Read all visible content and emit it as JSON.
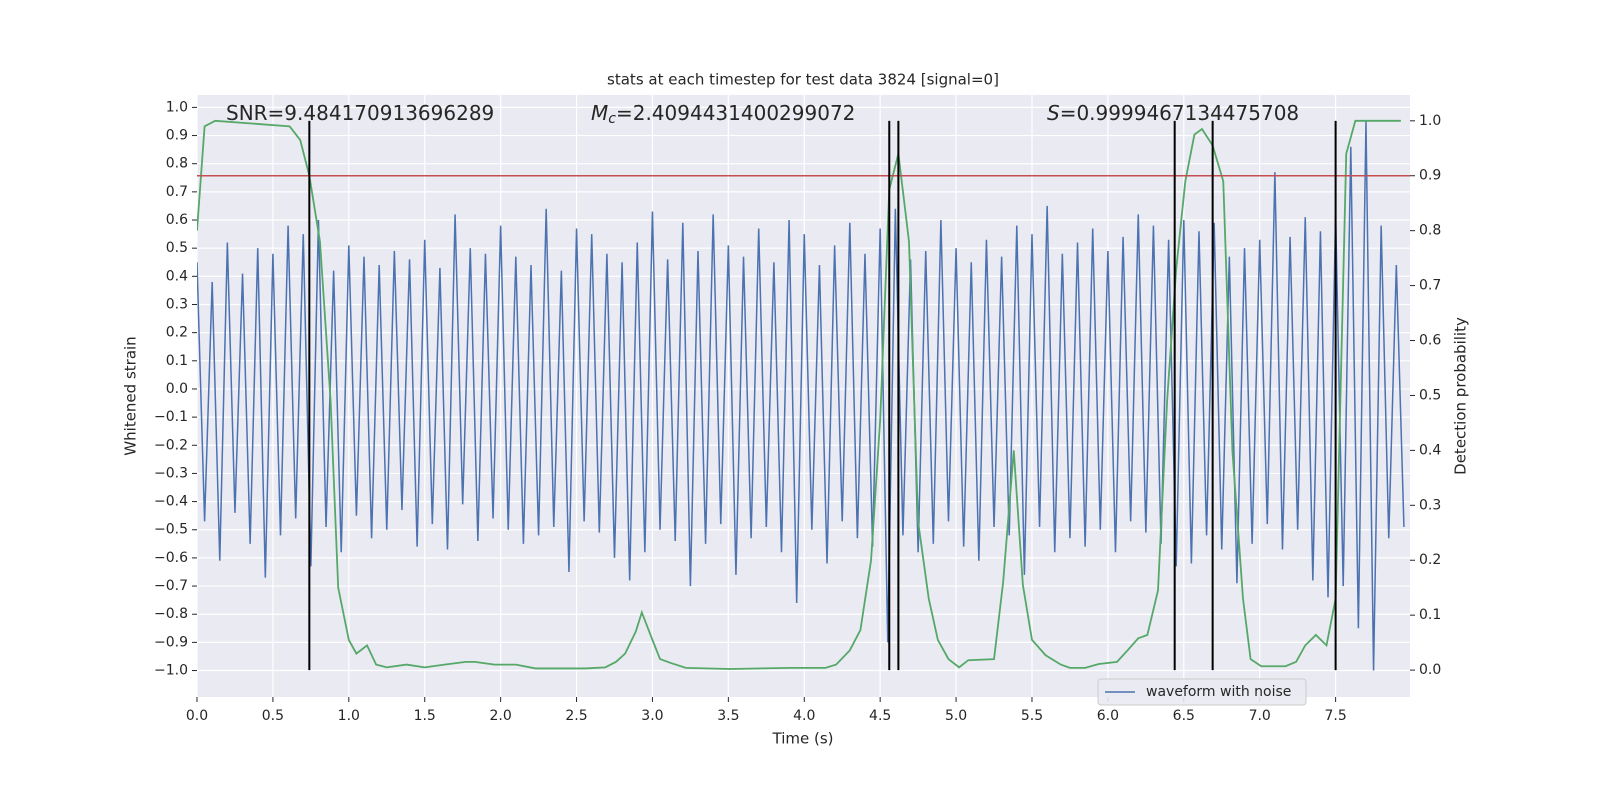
{
  "chart_data": {
    "type": "line",
    "title": "stats at each timestep for test data 3824 [signal=0]",
    "xlabel": "Time (s)",
    "ylabel": "Whitened strain",
    "y2label": "Detection probability",
    "annotations": [
      {
        "text": "SNR=9.484170913696289"
      },
      {
        "symbol": "M",
        "sub": "c",
        "text": "=2.4094431400299072"
      },
      {
        "symbol": "S",
        "text": "=0.9999467134475708"
      }
    ],
    "xlim": [
      0,
      7.99
    ],
    "ylim": [
      -1.094,
      1.044
    ],
    "y2lim": [
      -0.049,
      1.047
    ],
    "grid": true,
    "legend": "lower right",
    "xticks": [
      {
        "value": 0,
        "label": "0.0"
      },
      {
        "value": 0.5,
        "label": "0.5"
      },
      {
        "value": 1,
        "label": "1.0"
      },
      {
        "value": 1.5,
        "label": "1.5"
      },
      {
        "value": 2,
        "label": "2.0"
      },
      {
        "value": 2.5,
        "label": "2.5"
      },
      {
        "value": 3,
        "label": "3.0"
      },
      {
        "value": 3.5,
        "label": "3.5"
      },
      {
        "value": 4,
        "label": "4.0"
      },
      {
        "value": 4.5,
        "label": "4.5"
      },
      {
        "value": 5,
        "label": "5.0"
      },
      {
        "value": 5.5,
        "label": "5.5"
      },
      {
        "value": 6,
        "label": "6.0"
      },
      {
        "value": 6.5,
        "label": "6.5"
      },
      {
        "value": 7,
        "label": "7.0"
      },
      {
        "value": 7.5,
        "label": "7.5"
      }
    ],
    "yticks": [
      {
        "value": -1,
        "label": "−1.0"
      },
      {
        "value": -0.9,
        "label": "−0.9"
      },
      {
        "value": -0.8,
        "label": "−0.8"
      },
      {
        "value": -0.7,
        "label": "−0.7"
      },
      {
        "value": -0.6,
        "label": "−0.6"
      },
      {
        "value": -0.5,
        "label": "−0.5"
      },
      {
        "value": -0.4,
        "label": "−0.4"
      },
      {
        "value": -0.3,
        "label": "−0.3"
      },
      {
        "value": -0.2,
        "label": "−0.2"
      },
      {
        "value": -0.1,
        "label": "−0.1"
      },
      {
        "value": 0,
        "label": "0.0"
      },
      {
        "value": 0.1,
        "label": "0.1"
      },
      {
        "value": 0.2,
        "label": "0.2"
      },
      {
        "value": 0.3,
        "label": "0.3"
      },
      {
        "value": 0.4,
        "label": "0.4"
      },
      {
        "value": 0.5,
        "label": "0.5"
      },
      {
        "value": 0.6,
        "label": "0.6"
      },
      {
        "value": 0.7,
        "label": "0.7"
      },
      {
        "value": 0.8,
        "label": "0.8"
      },
      {
        "value": 0.9,
        "label": "0.9"
      },
      {
        "value": 1,
        "label": "1.0"
      }
    ],
    "y2ticks": [
      {
        "value": 0,
        "label": "0.0"
      },
      {
        "value": 0.1,
        "label": "0.1"
      },
      {
        "value": 0.2,
        "label": "0.2"
      },
      {
        "value": 0.3,
        "label": "0.3"
      },
      {
        "value": 0.4,
        "label": "0.4"
      },
      {
        "value": 0.5,
        "label": "0.5"
      },
      {
        "value": 0.6,
        "label": "0.6"
      },
      {
        "value": 0.7,
        "label": "0.7"
      },
      {
        "value": 0.8,
        "label": "0.8"
      },
      {
        "value": 0.9,
        "label": "0.9"
      },
      {
        "value": 1,
        "label": "1.0"
      }
    ],
    "threshold": 0.9,
    "threshold_color": "#c44e52",
    "vlines": [
      0.74,
      4.56,
      4.62,
      6.44,
      6.69,
      7.5
    ],
    "vline_range": [
      0,
      1
    ],
    "vline_color": "#000000",
    "series": [
      {
        "name": "waveform with noise",
        "color": "#4c72b0",
        "x": [
          0,
          0.05,
          0.1,
          0.15,
          0.2,
          0.25,
          0.3,
          0.35,
          0.4,
          0.45,
          0.5,
          0.55,
          0.6,
          0.65,
          0.7,
          0.75,
          0.8,
          0.85,
          0.9,
          0.95,
          1,
          1.05,
          1.1,
          1.15,
          1.2,
          1.25,
          1.3,
          1.35,
          1.4,
          1.45,
          1.5,
          1.55,
          1.6,
          1.65,
          1.7,
          1.75,
          1.8,
          1.85,
          1.9,
          1.95,
          2,
          2.05,
          2.1,
          2.15,
          2.2,
          2.25,
          2.3,
          2.35,
          2.4,
          2.45,
          2.5,
          2.55,
          2.6,
          2.65,
          2.7,
          2.75,
          2.8,
          2.85,
          2.9,
          2.95,
          3,
          3.05,
          3.1,
          3.15,
          3.2,
          3.25,
          3.3,
          3.35,
          3.4,
          3.45,
          3.5,
          3.55,
          3.6,
          3.65,
          3.7,
          3.75,
          3.8,
          3.85,
          3.9,
          3.95,
          4,
          4.05,
          4.1,
          4.15,
          4.2,
          4.25,
          4.3,
          4.35,
          4.4,
          4.45,
          4.5,
          4.55,
          4.6,
          4.65,
          4.7,
          4.75,
          4.8,
          4.85,
          4.9,
          4.95,
          5,
          5.05,
          5.1,
          5.15,
          5.2,
          5.25,
          5.3,
          5.35,
          5.4,
          5.45,
          5.5,
          5.55,
          5.6,
          5.65,
          5.7,
          5.75,
          5.8,
          5.85,
          5.9,
          5.95,
          6,
          6.05,
          6.1,
          6.15,
          6.2,
          6.25,
          6.3,
          6.35,
          6.4,
          6.45,
          6.5,
          6.55,
          6.6,
          6.65,
          6.7,
          6.75,
          6.8,
          6.85,
          6.9,
          6.95,
          7,
          7.05,
          7.1,
          7.15,
          7.2,
          7.25,
          7.3,
          7.35,
          7.4,
          7.45,
          7.5,
          7.55,
          7.6,
          7.65,
          7.7,
          7.75,
          7.8,
          7.85,
          7.9,
          7.95
        ],
        "values": [
          0.45,
          -0.47,
          0.38,
          -0.61,
          0.52,
          -0.44,
          0.41,
          -0.55,
          0.5,
          -0.67,
          0.48,
          -0.52,
          0.58,
          -0.46,
          0.55,
          -0.63,
          0.6,
          -0.49,
          0.42,
          -0.58,
          0.51,
          -0.45,
          0.47,
          -0.53,
          0.44,
          -0.5,
          0.49,
          -0.43,
          0.46,
          -0.56,
          0.53,
          -0.48,
          0.43,
          -0.57,
          0.62,
          -0.41,
          0.5,
          -0.54,
          0.48,
          -0.46,
          0.58,
          -0.5,
          0.47,
          -0.55,
          0.44,
          -0.52,
          0.64,
          -0.49,
          0.42,
          -0.65,
          0.57,
          -0.47,
          0.55,
          -0.51,
          0.48,
          -0.6,
          0.45,
          -0.68,
          0.52,
          -0.58,
          0.63,
          -0.5,
          0.46,
          -0.54,
          0.59,
          -0.7,
          0.49,
          -0.55,
          0.62,
          -0.48,
          0.51,
          -0.66,
          0.47,
          -0.53,
          0.57,
          -0.49,
          0.45,
          -0.58,
          0.6,
          -0.76,
          0.55,
          -0.5,
          0.44,
          -0.62,
          0.51,
          -0.47,
          0.59,
          -0.53,
          0.48,
          -0.56,
          0.57,
          -0.9,
          0.64,
          -0.52,
          0.46,
          -0.58,
          0.49,
          -0.55,
          0.6,
          -0.47,
          0.5,
          -0.56,
          0.45,
          -0.61,
          0.53,
          -0.49,
          0.47,
          -0.52,
          0.58,
          -0.66,
          0.55,
          -0.49,
          0.65,
          -0.58,
          0.48,
          -0.53,
          0.52,
          -0.56,
          0.57,
          -0.5,
          0.49,
          -0.58,
          0.54,
          -0.47,
          0.62,
          -0.51,
          0.58,
          -0.55,
          0.53,
          -0.63,
          0.6,
          -0.62,
          0.56,
          -0.52,
          0.59,
          -0.57,
          0.47,
          -0.69,
          0.5,
          -0.55,
          0.53,
          -0.48,
          0.77,
          -0.57,
          0.54,
          -0.5,
          0.61,
          -0.68,
          0.56,
          -0.74,
          0.62,
          -0.7,
          0.86,
          -0.85,
          0.95,
          -1.0,
          0.58,
          -0.53,
          0.44,
          -0.49
        ]
      },
      {
        "color": "#55a868",
        "axis": "y2",
        "x": [
          0,
          0.05,
          0.12,
          0.61,
          0.68,
          0.74,
          0.81,
          0.88,
          0.93,
          1,
          1.05,
          1.12,
          1.18,
          1.25,
          1.38,
          1.5,
          1.63,
          1.77,
          1.83,
          1.96,
          2.1,
          2.23,
          2.56,
          2.69,
          2.76,
          2.82,
          2.89,
          2.93,
          3,
          3.05,
          3.12,
          3.22,
          3.51,
          3.91,
          4.14,
          4.21,
          4.3,
          4.37,
          4.44,
          4.5,
          4.56,
          4.62,
          4.69,
          4.75,
          4.82,
          4.88,
          4.95,
          5.02,
          5.08,
          5.25,
          5.31,
          5.38,
          5.44,
          5.5,
          5.59,
          5.69,
          5.75,
          5.85,
          5.94,
          6.06,
          6.13,
          6.2,
          6.26,
          6.33,
          6.39,
          6.45,
          6.51,
          6.57,
          6.62,
          6.69,
          6.76,
          6.82,
          6.89,
          6.94,
          7.01,
          7.17,
          7.24,
          7.3,
          7.37,
          7.44,
          7.5,
          7.57,
          7.63,
          7.93
        ],
        "values": [
          0.8,
          0.99,
          1,
          0.99,
          0.965,
          0.9,
          0.78,
          0.49,
          0.15,
          0.055,
          0.03,
          0.045,
          0.01,
          0.005,
          0.01,
          0.005,
          0.01,
          0.015,
          0.015,
          0.01,
          0.01,
          0.003,
          0.003,
          0.005,
          0.015,
          0.03,
          0.07,
          0.105,
          0.055,
          0.02,
          0.013,
          0.004,
          0.002,
          0.004,
          0.004,
          0.01,
          0.036,
          0.073,
          0.2,
          0.455,
          0.875,
          0.94,
          0.78,
          0.27,
          0.13,
          0.055,
          0.02,
          0.005,
          0.018,
          0.02,
          0.16,
          0.4,
          0.155,
          0.055,
          0.027,
          0.01,
          0.004,
          0.004,
          0.011,
          0.015,
          0.036,
          0.058,
          0.064,
          0.145,
          0.49,
          0.73,
          0.89,
          0.975,
          0.985,
          0.955,
          0.89,
          0.4,
          0.13,
          0.02,
          0.007,
          0.007,
          0.015,
          0.045,
          0.064,
          0.045,
          0.13,
          0.94,
          1,
          1
        ]
      }
    ]
  }
}
